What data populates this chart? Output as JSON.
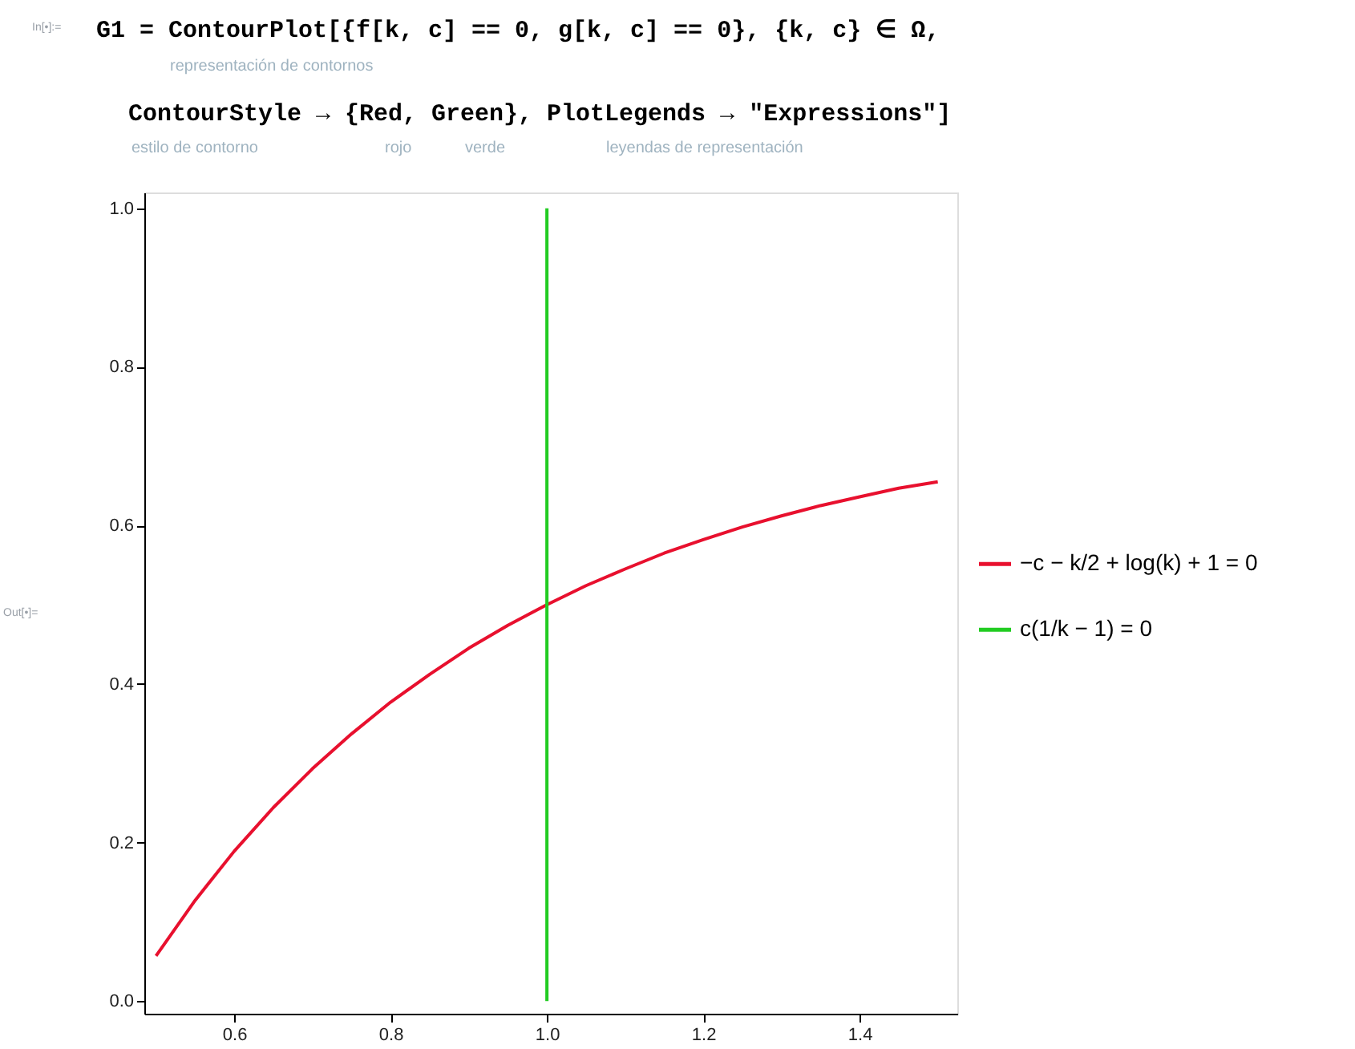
{
  "chart_data": {
    "type": "line",
    "annotations": [
      "In[•]:=",
      "G1 = ContourPlot[{f[k, c] == 0, g[k, c] == 0}, {k, c} ∈ Ω,",
      "representación de contornos",
      "ContourStyle → {Red, Green}, PlotLegends → \"Expressions\"]",
      "estilo de contorno",
      "rojo",
      "verde",
      "leyendas de representación",
      "Out[•]="
    ],
    "series": [
      {
        "name": "−c − k/2 + log(k) + 1 = 0",
        "color": "#e8102e",
        "x": [
          0.5,
          0.55,
          0.6,
          0.65,
          0.7,
          0.75,
          0.8,
          0.85,
          0.9,
          0.95,
          1.0,
          1.05,
          1.1,
          1.15,
          1.2,
          1.25,
          1.3,
          1.35,
          1.4,
          1.45,
          1.5
        ],
        "values": [
          0.057,
          0.127,
          0.189,
          0.244,
          0.293,
          0.337,
          0.377,
          0.412,
          0.445,
          0.474,
          0.5,
          0.524,
          0.545,
          0.565,
          0.582,
          0.598,
          0.612,
          0.625,
          0.636,
          0.647,
          0.655
        ]
      },
      {
        "name": "c(1/k − 1) = 0",
        "color": "#22cc22",
        "x": [
          1.0,
          1.0
        ],
        "values": [
          0.0,
          1.0
        ]
      }
    ],
    "xlim": [
      0.485,
      1.525
    ],
    "ylim": [
      -0.016,
      1.02
    ],
    "xticks": [
      0.6,
      0.8,
      {
        "value": 1.0,
        "label": "1.0"
      },
      1.2,
      1.4
    ],
    "yticks": [
      {
        "value": 0,
        "label": "0.0"
      },
      0.2,
      0.4,
      0.6,
      0.8,
      {
        "value": 1.0,
        "label": "1.0"
      }
    ],
    "grid": false,
    "legend": "right",
    "line_style": "solid",
    "marker": "none"
  }
}
